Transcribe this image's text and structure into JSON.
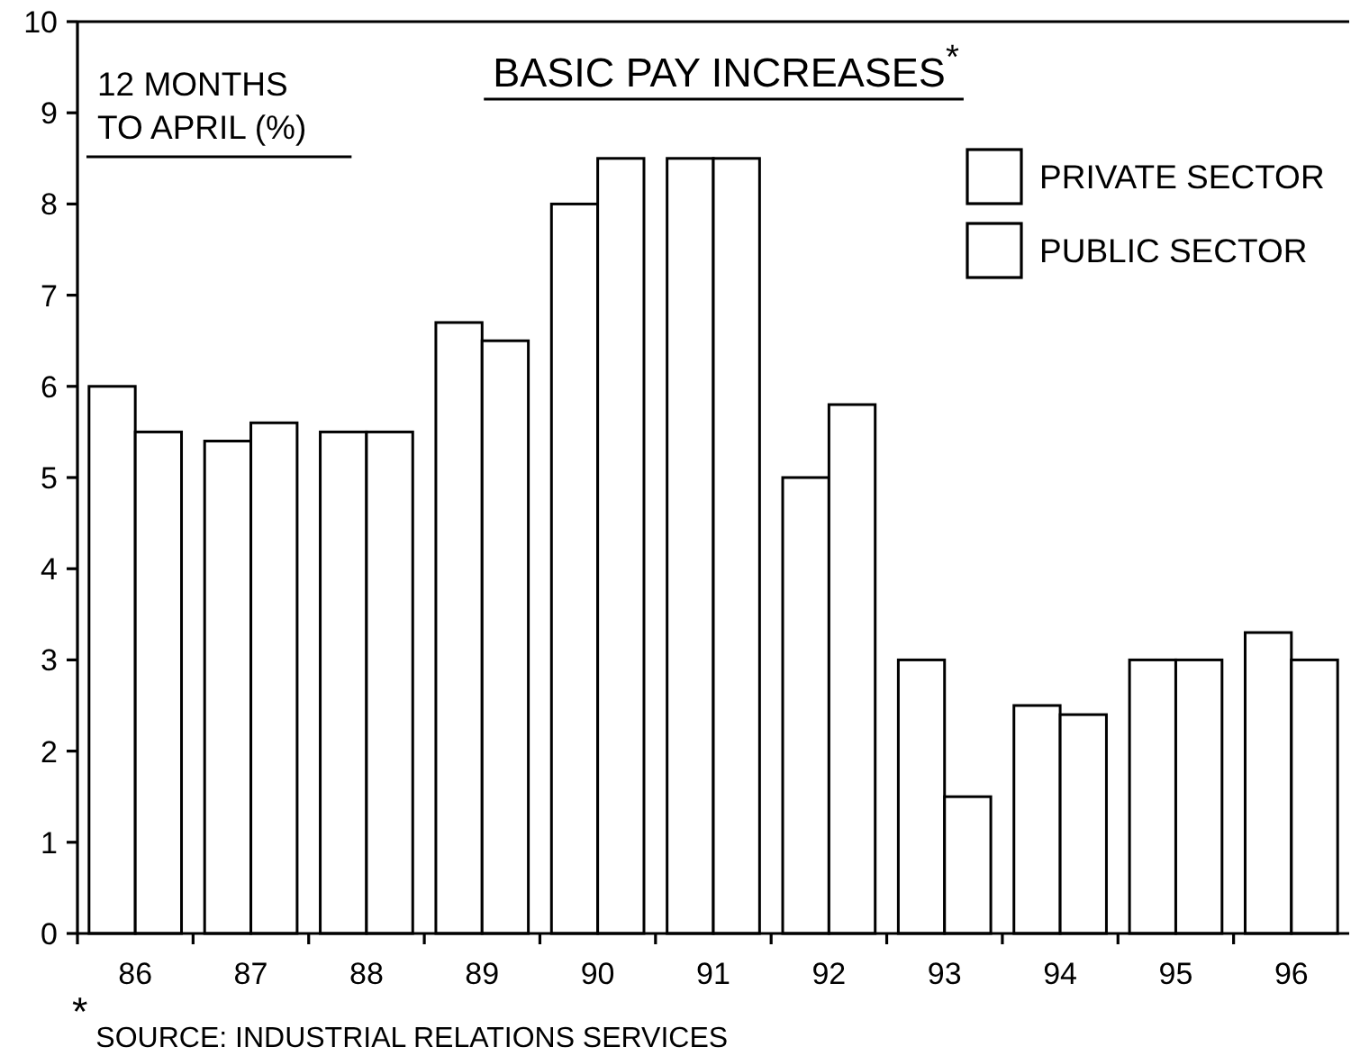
{
  "chart_data": {
    "type": "bar",
    "title": "BASIC PAY INCREASES$^{*}$",
    "ylabel": "12 MONTHS\nTO APRIL (%)",
    "categories": [
      "86",
      "87",
      "88",
      "89",
      "90",
      "91",
      "92",
      "93",
      "94",
      "95",
      "96"
    ],
    "series": [
      {
        "name": "PRIVATE SECTOR",
        "color": "#ffffff",
        "values": [
          6.0,
          5.4,
          5.5,
          6.7,
          8.0,
          8.5,
          5.0,
          3.0,
          2.5,
          3.0,
          3.3
        ]
      },
      {
        "name": "PUBLIC SECTOR",
        "color": "#ffffff",
        "values": [
          5.5,
          5.6,
          5.5,
          6.5,
          8.5,
          8.5,
          5.8,
          1.5,
          2.4,
          3.0,
          3.0
        ]
      }
    ],
    "ylim": [
      0,
      10
    ],
    "yticks": [
      0,
      1,
      2,
      3,
      4,
      5,
      6,
      7,
      8,
      9,
      10
    ],
    "grid": false,
    "legend": "top right",
    "annotations": [
      "$^{*}$ SOURCE: INDUSTRIAL RELATIONS SERVICES"
    ]
  }
}
